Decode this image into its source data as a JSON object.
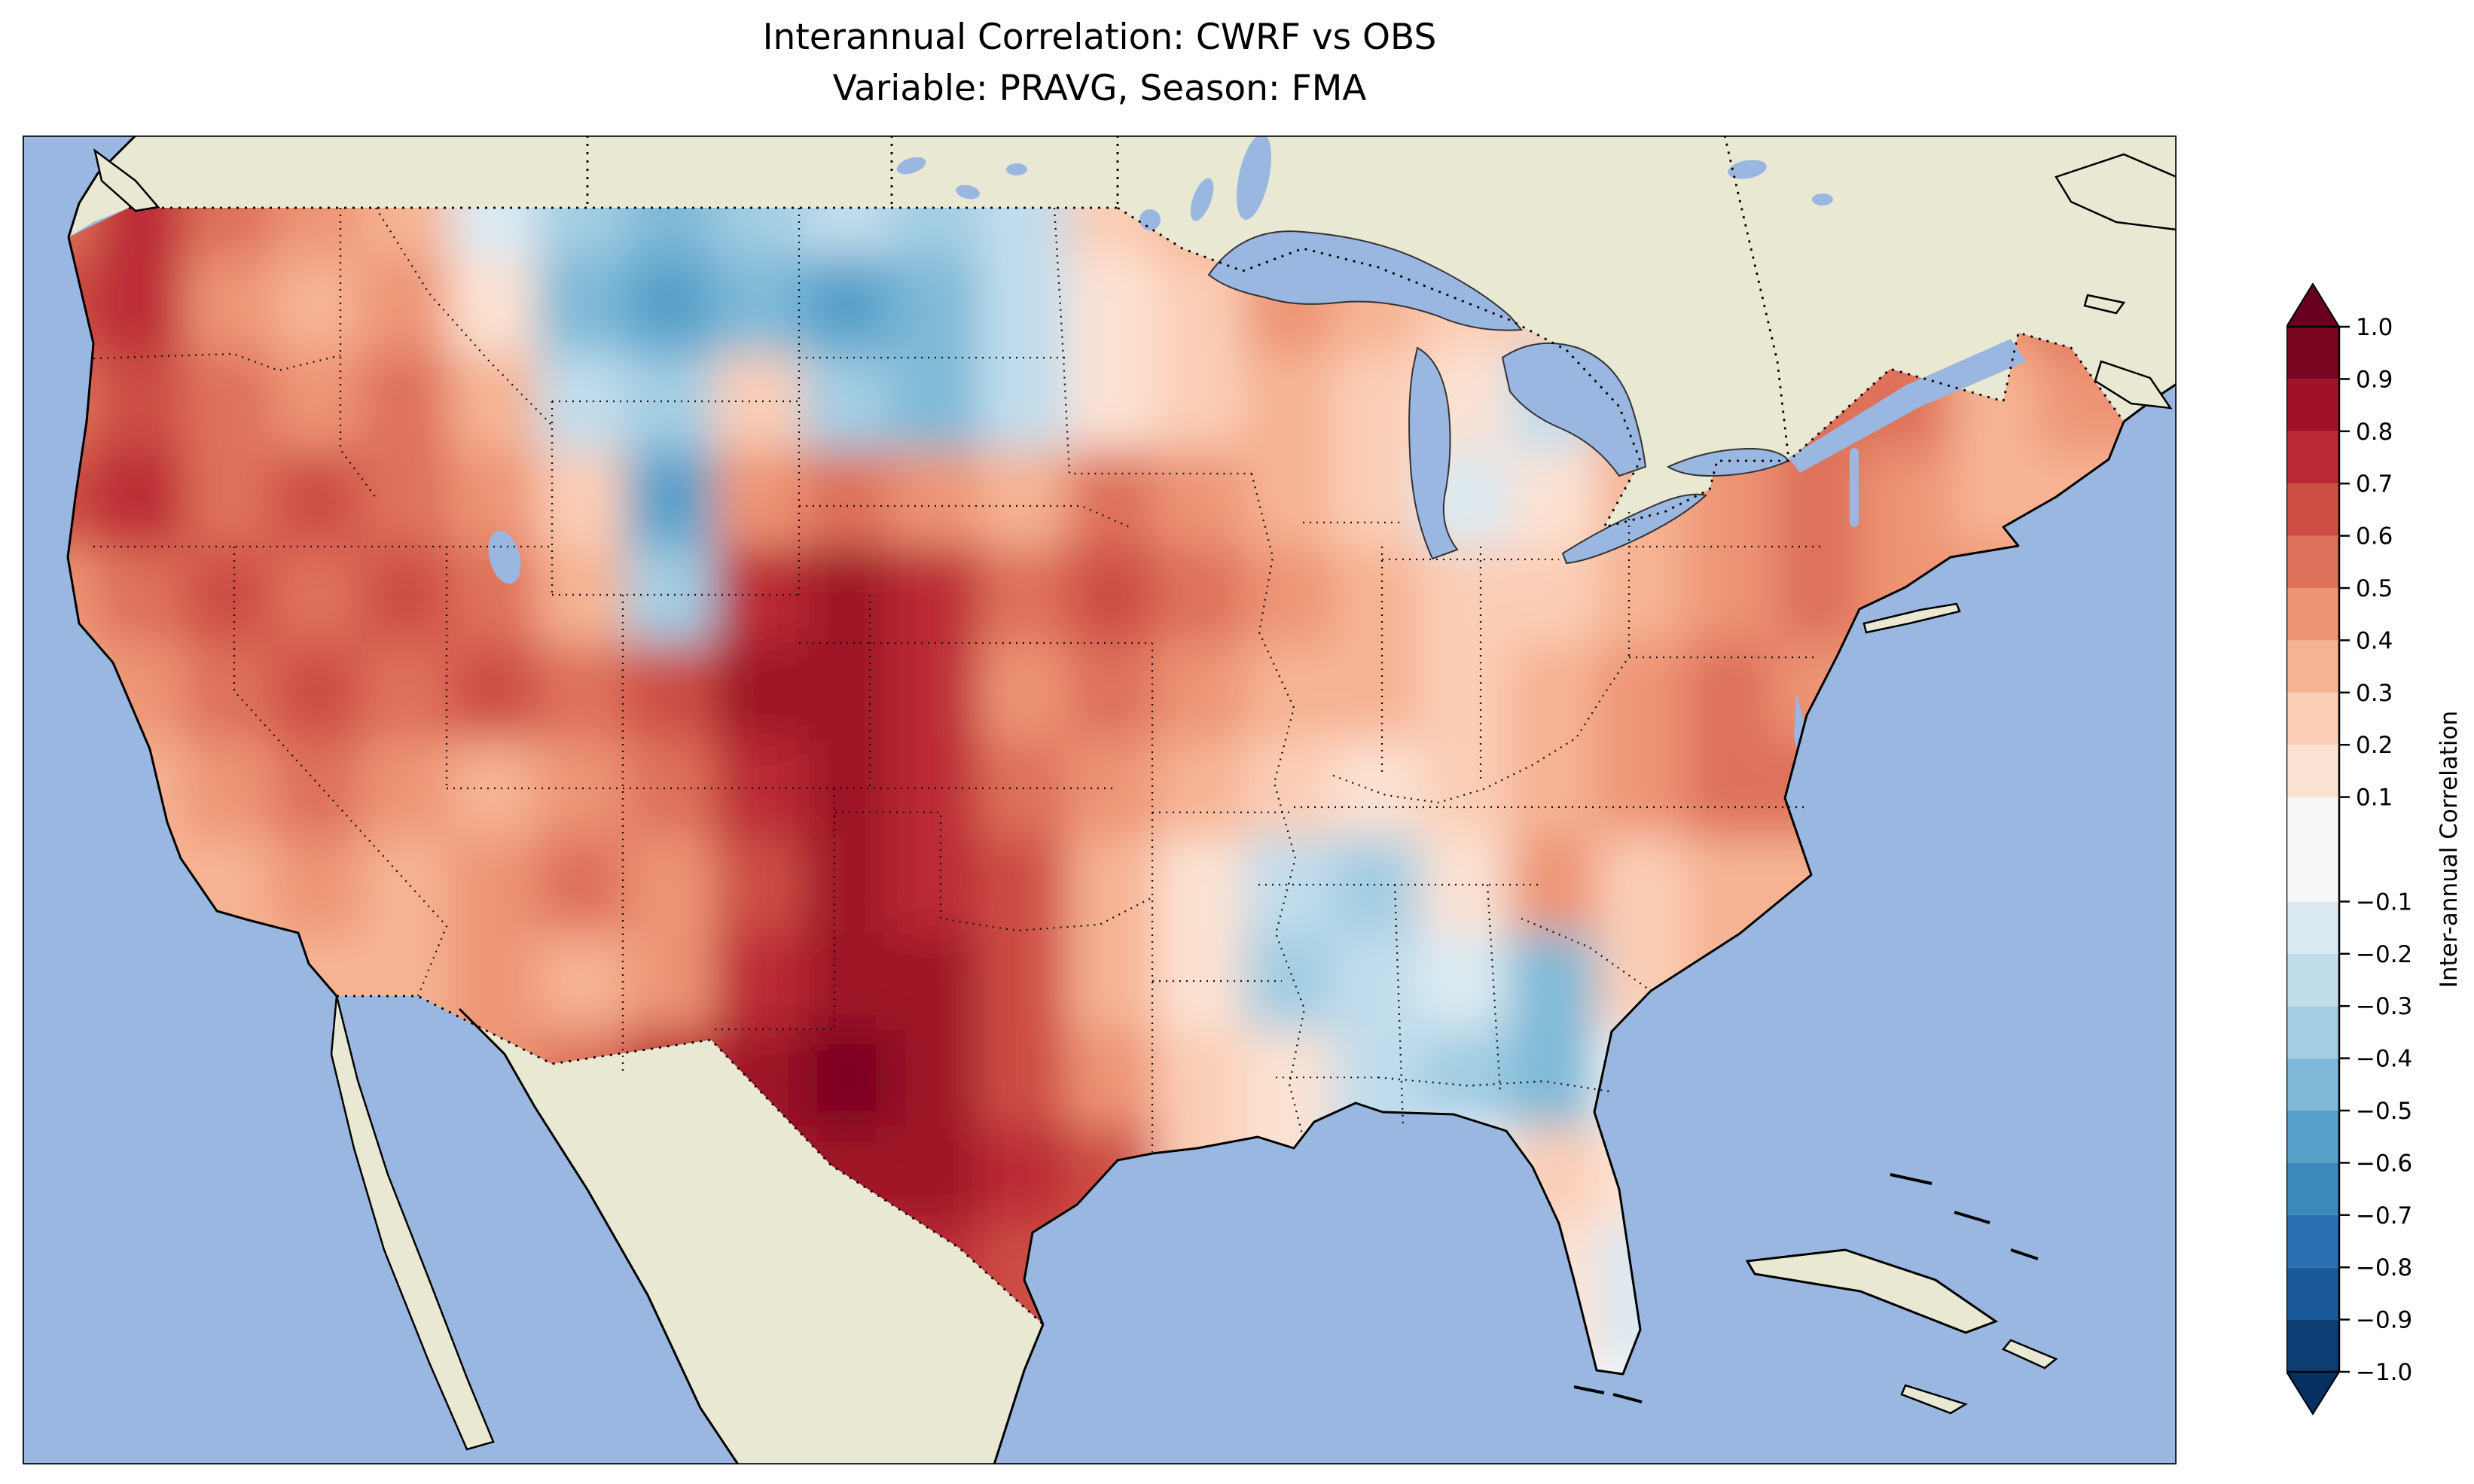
{
  "title": {
    "line1": "Interannual Correlation: CWRF vs OBS",
    "line2": "Variable: PRAVG, Season: FMA"
  },
  "map": {
    "ocean_color": "#99b7e0",
    "land_color": "#e9e8d2",
    "frame_color": "#000000",
    "border_style": "dotted",
    "labels_on_map": ""
  },
  "colorbar": {
    "label": "Inter-annual Correlation",
    "extend_over_color": "#67001f",
    "extend_under_color": "#053061",
    "segments": [
      {
        "from": -1.0,
        "to": -0.9,
        "color": "#0c3e74"
      },
      {
        "from": -0.9,
        "to": -0.8,
        "color": "#1a5999"
      },
      {
        "from": -0.8,
        "to": -0.7,
        "color": "#2a71b2"
      },
      {
        "from": -0.7,
        "to": -0.6,
        "color": "#3b88bd"
      },
      {
        "from": -0.6,
        "to": -0.5,
        "color": "#57a0ca"
      },
      {
        "from": -0.5,
        "to": -0.4,
        "color": "#7eb9d7"
      },
      {
        "from": -0.4,
        "to": -0.3,
        "color": "#a2cde3"
      },
      {
        "from": -0.3,
        "to": -0.2,
        "color": "#c1ddec"
      },
      {
        "from": -0.2,
        "to": -0.1,
        "color": "#dbeaf2"
      },
      {
        "from": -0.1,
        "to": 0.1,
        "color": "#f7f7f7"
      },
      {
        "from": 0.1,
        "to": 0.2,
        "color": "#fce2d3"
      },
      {
        "from": 0.2,
        "to": 0.3,
        "color": "#fbceb6"
      },
      {
        "from": 0.3,
        "to": 0.4,
        "color": "#f6b393"
      },
      {
        "from": 0.4,
        "to": 0.5,
        "color": "#ed9475"
      },
      {
        "from": 0.5,
        "to": 0.6,
        "color": "#de715a"
      },
      {
        "from": 0.6,
        "to": 0.7,
        "color": "#cd4e45"
      },
      {
        "from": 0.7,
        "to": 0.8,
        "color": "#bb2a34"
      },
      {
        "from": 0.8,
        "to": 0.9,
        "color": "#9f1228"
      },
      {
        "from": 0.9,
        "to": 1.0,
        "color": "#7a0622"
      }
    ],
    "ticks": [
      {
        "v": 1.0,
        "label": "1.0"
      },
      {
        "v": 0.9,
        "label": "0.9"
      },
      {
        "v": 0.8,
        "label": "0.8"
      },
      {
        "v": 0.7,
        "label": "0.7"
      },
      {
        "v": 0.6,
        "label": "0.6"
      },
      {
        "v": 0.5,
        "label": "0.5"
      },
      {
        "v": 0.4,
        "label": "0.4"
      },
      {
        "v": 0.3,
        "label": "0.3"
      },
      {
        "v": 0.2,
        "label": "0.2"
      },
      {
        "v": 0.1,
        "label": "0.1"
      },
      {
        "v": -0.1,
        "label": "−0.1"
      },
      {
        "v": -0.2,
        "label": "−0.2"
      },
      {
        "v": -0.3,
        "label": "−0.3"
      },
      {
        "v": -0.4,
        "label": "−0.4"
      },
      {
        "v": -0.5,
        "label": "−0.5"
      },
      {
        "v": -0.6,
        "label": "−0.6"
      },
      {
        "v": -0.7,
        "label": "−0.7"
      },
      {
        "v": -0.8,
        "label": "−0.8"
      },
      {
        "v": -0.9,
        "label": "−0.9"
      },
      {
        "v": -1.0,
        "label": "−1.0"
      }
    ]
  },
  "chart_data": {
    "type": "heatmap",
    "title": "Interannual Correlation: CWRF vs OBS",
    "subtitle": "Variable: PRAVG, Season: FMA",
    "colorbar_label": "Inter-annual Correlation",
    "value_range": [
      -1.0,
      1.0
    ],
    "level_step": 0.1,
    "map_extent": {
      "lon": [
        -126,
        -65
      ],
      "lat": [
        23,
        50.5
      ]
    },
    "x_lon": [
      -124.5,
      -122,
      -119.5,
      -117,
      -114.5,
      -112,
      -109.5,
      -107,
      -104.5,
      -102,
      -99.5,
      -97,
      -94.5,
      -92,
      -89.5,
      -87,
      -84.5,
      -82,
      -79.5,
      -77,
      -74.5,
      -72,
      -69.5,
      -67
    ],
    "y_lat": [
      48.5,
      46.5,
      44.5,
      42.5,
      40.5,
      38.5,
      36.5,
      34.5,
      32.5,
      30.5,
      28.5,
      26.5
    ],
    "values": [
      [
        0.55,
        0.75,
        0.55,
        0.45,
        0.35,
        -0.15,
        -0.35,
        -0.45,
        -0.35,
        -0.25,
        -0.35,
        -0.25,
        0.25,
        0.35,
        0.35,
        0.45,
        0.35,
        0.25,
        null,
        null,
        0.35,
        0.45,
        0.55,
        0.65
      ],
      [
        0.65,
        0.75,
        0.45,
        0.35,
        0.45,
        0.15,
        -0.45,
        -0.55,
        -0.45,
        -0.55,
        -0.45,
        -0.25,
        0.15,
        0.25,
        0.45,
        0.35,
        0.25,
        0.25,
        null,
        null,
        0.45,
        0.55,
        0.45,
        0.55
      ],
      [
        0.55,
        0.65,
        0.55,
        0.45,
        0.55,
        0.35,
        -0.25,
        -0.35,
        0.25,
        -0.35,
        -0.45,
        -0.25,
        0.15,
        0.25,
        0.35,
        0.25,
        0.15,
        -0.25,
        0.35,
        0.45,
        0.55,
        0.55,
        0.35,
        null
      ],
      [
        0.65,
        0.75,
        0.55,
        0.65,
        0.55,
        0.45,
        0.25,
        -0.55,
        0.45,
        0.55,
        0.45,
        0.35,
        0.55,
        0.45,
        0.35,
        0.25,
        -0.15,
        0.15,
        0.35,
        0.45,
        0.55,
        0.45,
        0.35,
        null
      ],
      [
        0.45,
        0.55,
        0.65,
        0.55,
        0.65,
        0.55,
        0.35,
        -0.35,
        0.75,
        0.85,
        0.75,
        0.55,
        0.65,
        0.55,
        0.45,
        0.35,
        0.25,
        0.25,
        0.35,
        0.45,
        0.55,
        0.45,
        null,
        null
      ],
      [
        0.35,
        0.45,
        0.55,
        0.65,
        0.55,
        0.65,
        0.55,
        0.65,
        0.85,
        0.85,
        0.75,
        0.45,
        0.55,
        0.45,
        0.35,
        0.35,
        0.25,
        0.35,
        0.45,
        0.55,
        0.45,
        null,
        null,
        null
      ],
      [
        null,
        0.35,
        0.45,
        0.55,
        0.45,
        0.35,
        0.45,
        0.55,
        0.75,
        0.85,
        0.75,
        0.55,
        0.45,
        0.35,
        0.25,
        0.15,
        0.25,
        0.35,
        0.45,
        0.55,
        null,
        null,
        null,
        null
      ],
      [
        null,
        null,
        0.35,
        0.45,
        0.35,
        0.45,
        0.55,
        0.45,
        0.65,
        0.85,
        0.75,
        0.65,
        0.35,
        0.15,
        -0.25,
        -0.35,
        0.15,
        0.45,
        0.25,
        0.35,
        null,
        null,
        null,
        null
      ],
      [
        null,
        null,
        null,
        0.35,
        0.35,
        0.45,
        0.35,
        0.45,
        0.75,
        0.85,
        0.85,
        0.65,
        0.35,
        0.15,
        -0.35,
        -0.25,
        -0.15,
        -0.45,
        0.25,
        null,
        null,
        null,
        null,
        null
      ],
      [
        null,
        null,
        null,
        null,
        null,
        null,
        null,
        0.75,
        0.85,
        0.95,
        0.85,
        0.65,
        0.45,
        0.25,
        0.15,
        -0.25,
        -0.35,
        -0.45,
        null,
        null,
        null,
        null,
        null,
        null
      ],
      [
        null,
        null,
        null,
        null,
        null,
        null,
        null,
        null,
        null,
        null,
        0.85,
        0.75,
        null,
        null,
        null,
        null,
        null,
        0.25,
        0.15,
        null,
        null,
        null,
        null,
        null
      ],
      [
        null,
        null,
        null,
        null,
        null,
        null,
        null,
        null,
        null,
        null,
        0.75,
        0.65,
        null,
        null,
        null,
        null,
        null,
        0.15,
        -0.15,
        null,
        null,
        null,
        null,
        null
      ]
    ],
    "legend_position": "right",
    "grid": false
  }
}
